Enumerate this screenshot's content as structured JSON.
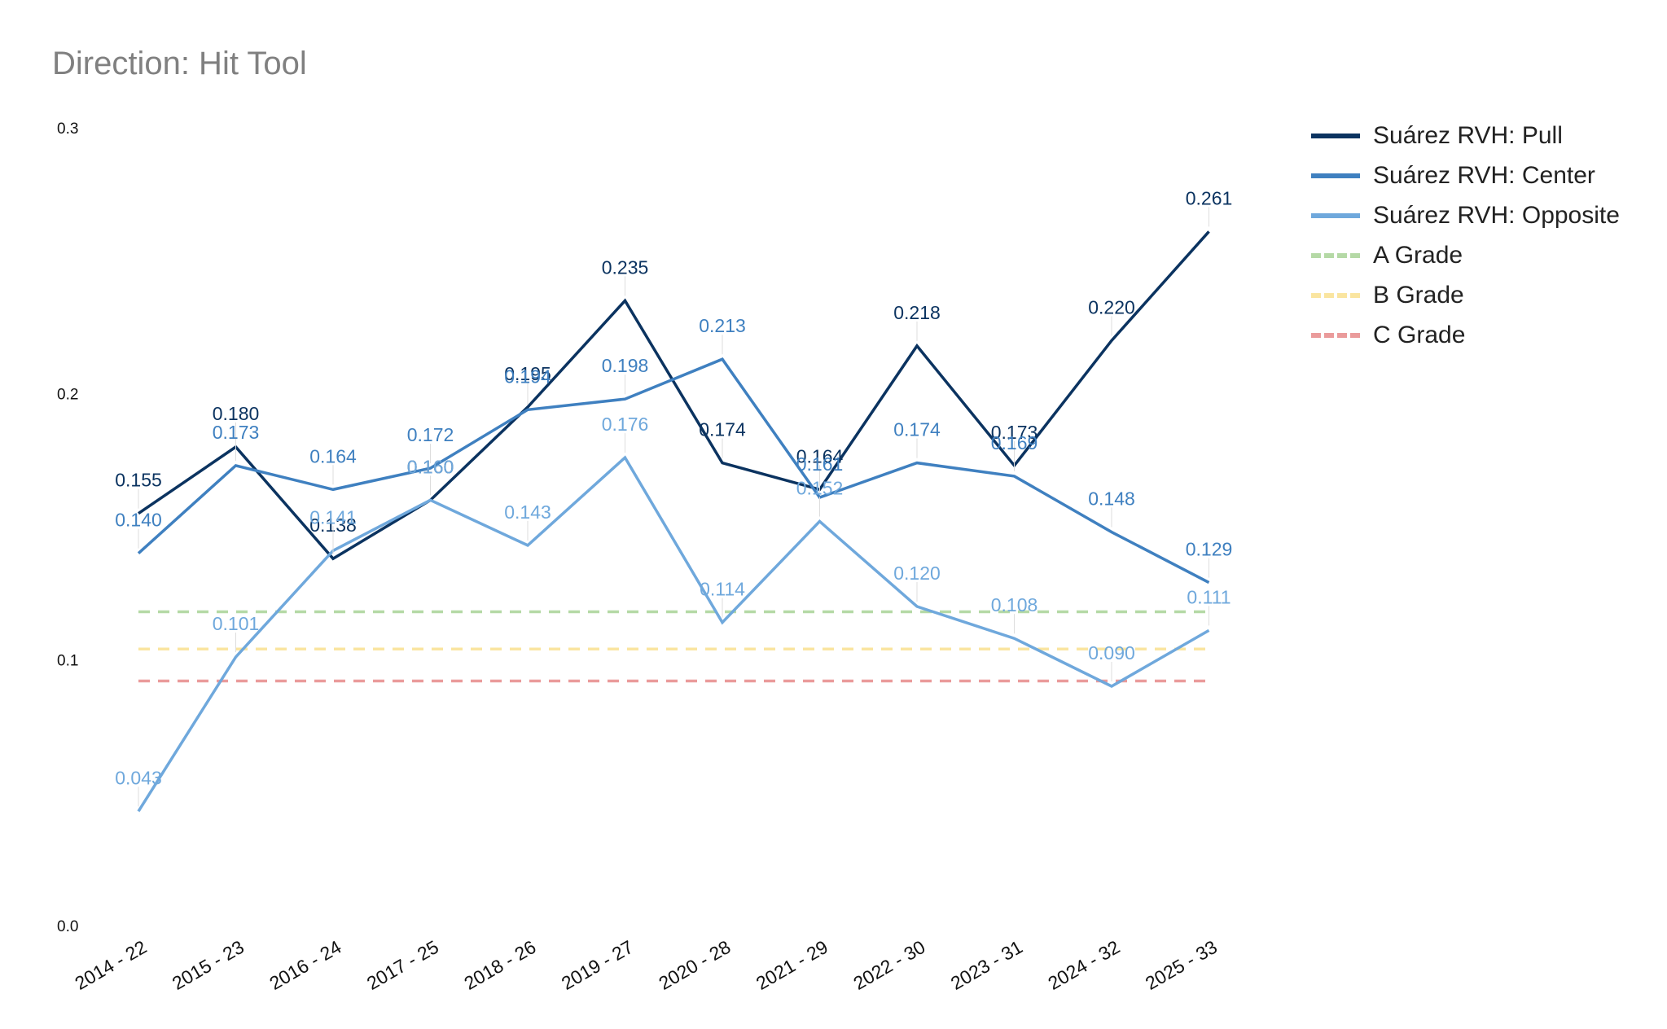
{
  "title": "Direction: Hit Tool",
  "chart_data": {
    "type": "line",
    "title": "Direction: Hit Tool",
    "xlabel": "",
    "ylabel": "",
    "categories": [
      "2014 - 22",
      "2015 - 23",
      "2016 - 24",
      "2017 - 25",
      "2018 - 26",
      "2019 - 27",
      "2020 - 28",
      "2021 - 29",
      "2022 - 30",
      "2023 - 31",
      "2024 - 32",
      "2025 - 33"
    ],
    "ylim": [
      0,
      0.3
    ],
    "yticks": [
      0.0,
      0.1,
      0.2,
      0.3
    ],
    "ytick_labels": [
      "0.0",
      "0.1",
      "0.2",
      "0.3"
    ],
    "grid": false,
    "legend_position": "right",
    "series": [
      {
        "name": "Suárez RVH: Pull",
        "color": "#0b3360",
        "style": "solid",
        "values": [
          0.155,
          0.18,
          0.138,
          0.16,
          0.195,
          0.235,
          0.174,
          0.164,
          0.218,
          0.173,
          0.22,
          0.261
        ],
        "labels": [
          "0.155",
          "0.180",
          "0.138",
          "0.160",
          "0.195",
          "0.235",
          "0.174",
          "0.164",
          "0.218",
          "0.173",
          "0.220",
          "0.261"
        ]
      },
      {
        "name": "Suárez RVH: Center",
        "color": "#3f80c0",
        "style": "solid",
        "values": [
          0.14,
          0.173,
          0.164,
          0.172,
          0.194,
          0.198,
          0.213,
          0.161,
          0.174,
          0.169,
          0.148,
          0.129
        ],
        "labels": [
          "0.140",
          "0.173",
          "0.164",
          "0.172",
          "0.194",
          "0.198",
          "0.213",
          "0.161",
          "0.174",
          "0.169",
          "0.148",
          "0.129"
        ]
      },
      {
        "name": "Suárez RVH: Opposite",
        "color": "#6fa8dc",
        "style": "solid",
        "values": [
          0.043,
          0.101,
          0.141,
          0.16,
          0.143,
          0.176,
          0.114,
          0.152,
          0.12,
          0.108,
          0.09,
          0.111
        ],
        "labels": [
          "0.043",
          "0.101",
          "0.141",
          "0.160",
          "0.143",
          "0.176",
          "0.114",
          "0.152",
          "0.120",
          "0.108",
          "0.090",
          "0.111"
        ]
      },
      {
        "name": "A Grade",
        "color": "#b5d9a6",
        "style": "dashed",
        "constant": 0.118
      },
      {
        "name": "B Grade",
        "color": "#fae5a0",
        "style": "dashed",
        "constant": 0.104
      },
      {
        "name": "C Grade",
        "color": "#ea9b9b",
        "style": "dashed",
        "constant": 0.092
      }
    ]
  }
}
